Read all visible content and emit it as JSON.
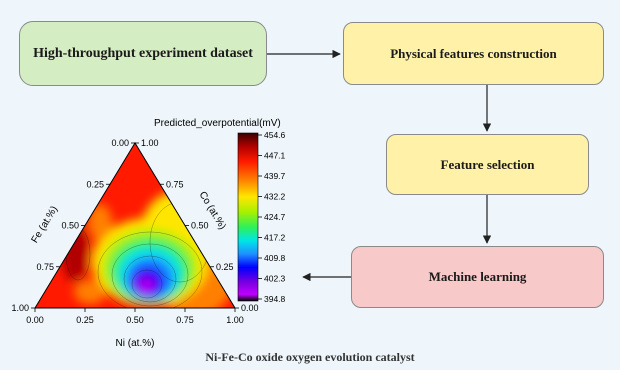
{
  "flow": {
    "dataset": "High-throughput experiment dataset",
    "physical": "Physical features construction",
    "selection": "Feature selection",
    "ml": "Machine learning"
  },
  "caption": "Ni-Fe-Co oxide oxygen evolution catalyst",
  "chart_data": {
    "type": "ternary-contour",
    "colorbar_title": "Predicted_overpotential(mV)",
    "colorbar_ticks": [
      "454.6",
      "447.1",
      "439.7",
      "432.2",
      "424.7",
      "417.2",
      "409.8",
      "402.3",
      "394.8"
    ],
    "colorbar_range": [
      394.8,
      454.6
    ],
    "colors": [
      "#3a0000",
      "#b00000",
      "#ff1a00",
      "#ff8000",
      "#ffe600",
      "#a8f000",
      "#2ef05a",
      "#00e6e6",
      "#1e90ff",
      "#0000ff",
      "#7a00e0",
      "#c000ff",
      "#000000"
    ],
    "axes": {
      "bottom": {
        "label": "Ni (at.%)",
        "ticks": [
          "0.00",
          "0.25",
          "0.50",
          "0.75",
          "1.00"
        ]
      },
      "left": {
        "label": "Fe (at.%)",
        "ticks": [
          "0.00",
          "0.25",
          "0.50",
          "0.75",
          "1.00"
        ]
      },
      "right": {
        "label": "Co (at.%)",
        "ticks": [
          "1.00",
          "0.75",
          "0.50",
          "0.25",
          "0.00"
        ]
      }
    }
  }
}
